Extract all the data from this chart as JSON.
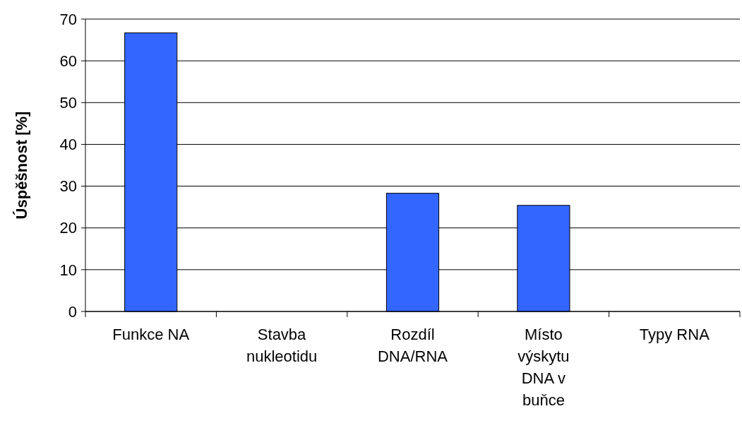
{
  "chart_data": {
    "type": "bar",
    "ylabel": "Úspěšnost [%]",
    "categories": [
      "Funkce NA",
      "Stavba nukleotidu",
      "Rozdíl DNA/RNA",
      "Místo výskytu DNA v buňce",
      "Typy RNA"
    ],
    "values": [
      66.7,
      0,
      28.3,
      25.4,
      0
    ],
    "color": "#3366ff",
    "ylim": [
      0,
      70
    ],
    "yticks": [
      0,
      10,
      20,
      30,
      40,
      50,
      60,
      70
    ],
    "grid": "y"
  }
}
